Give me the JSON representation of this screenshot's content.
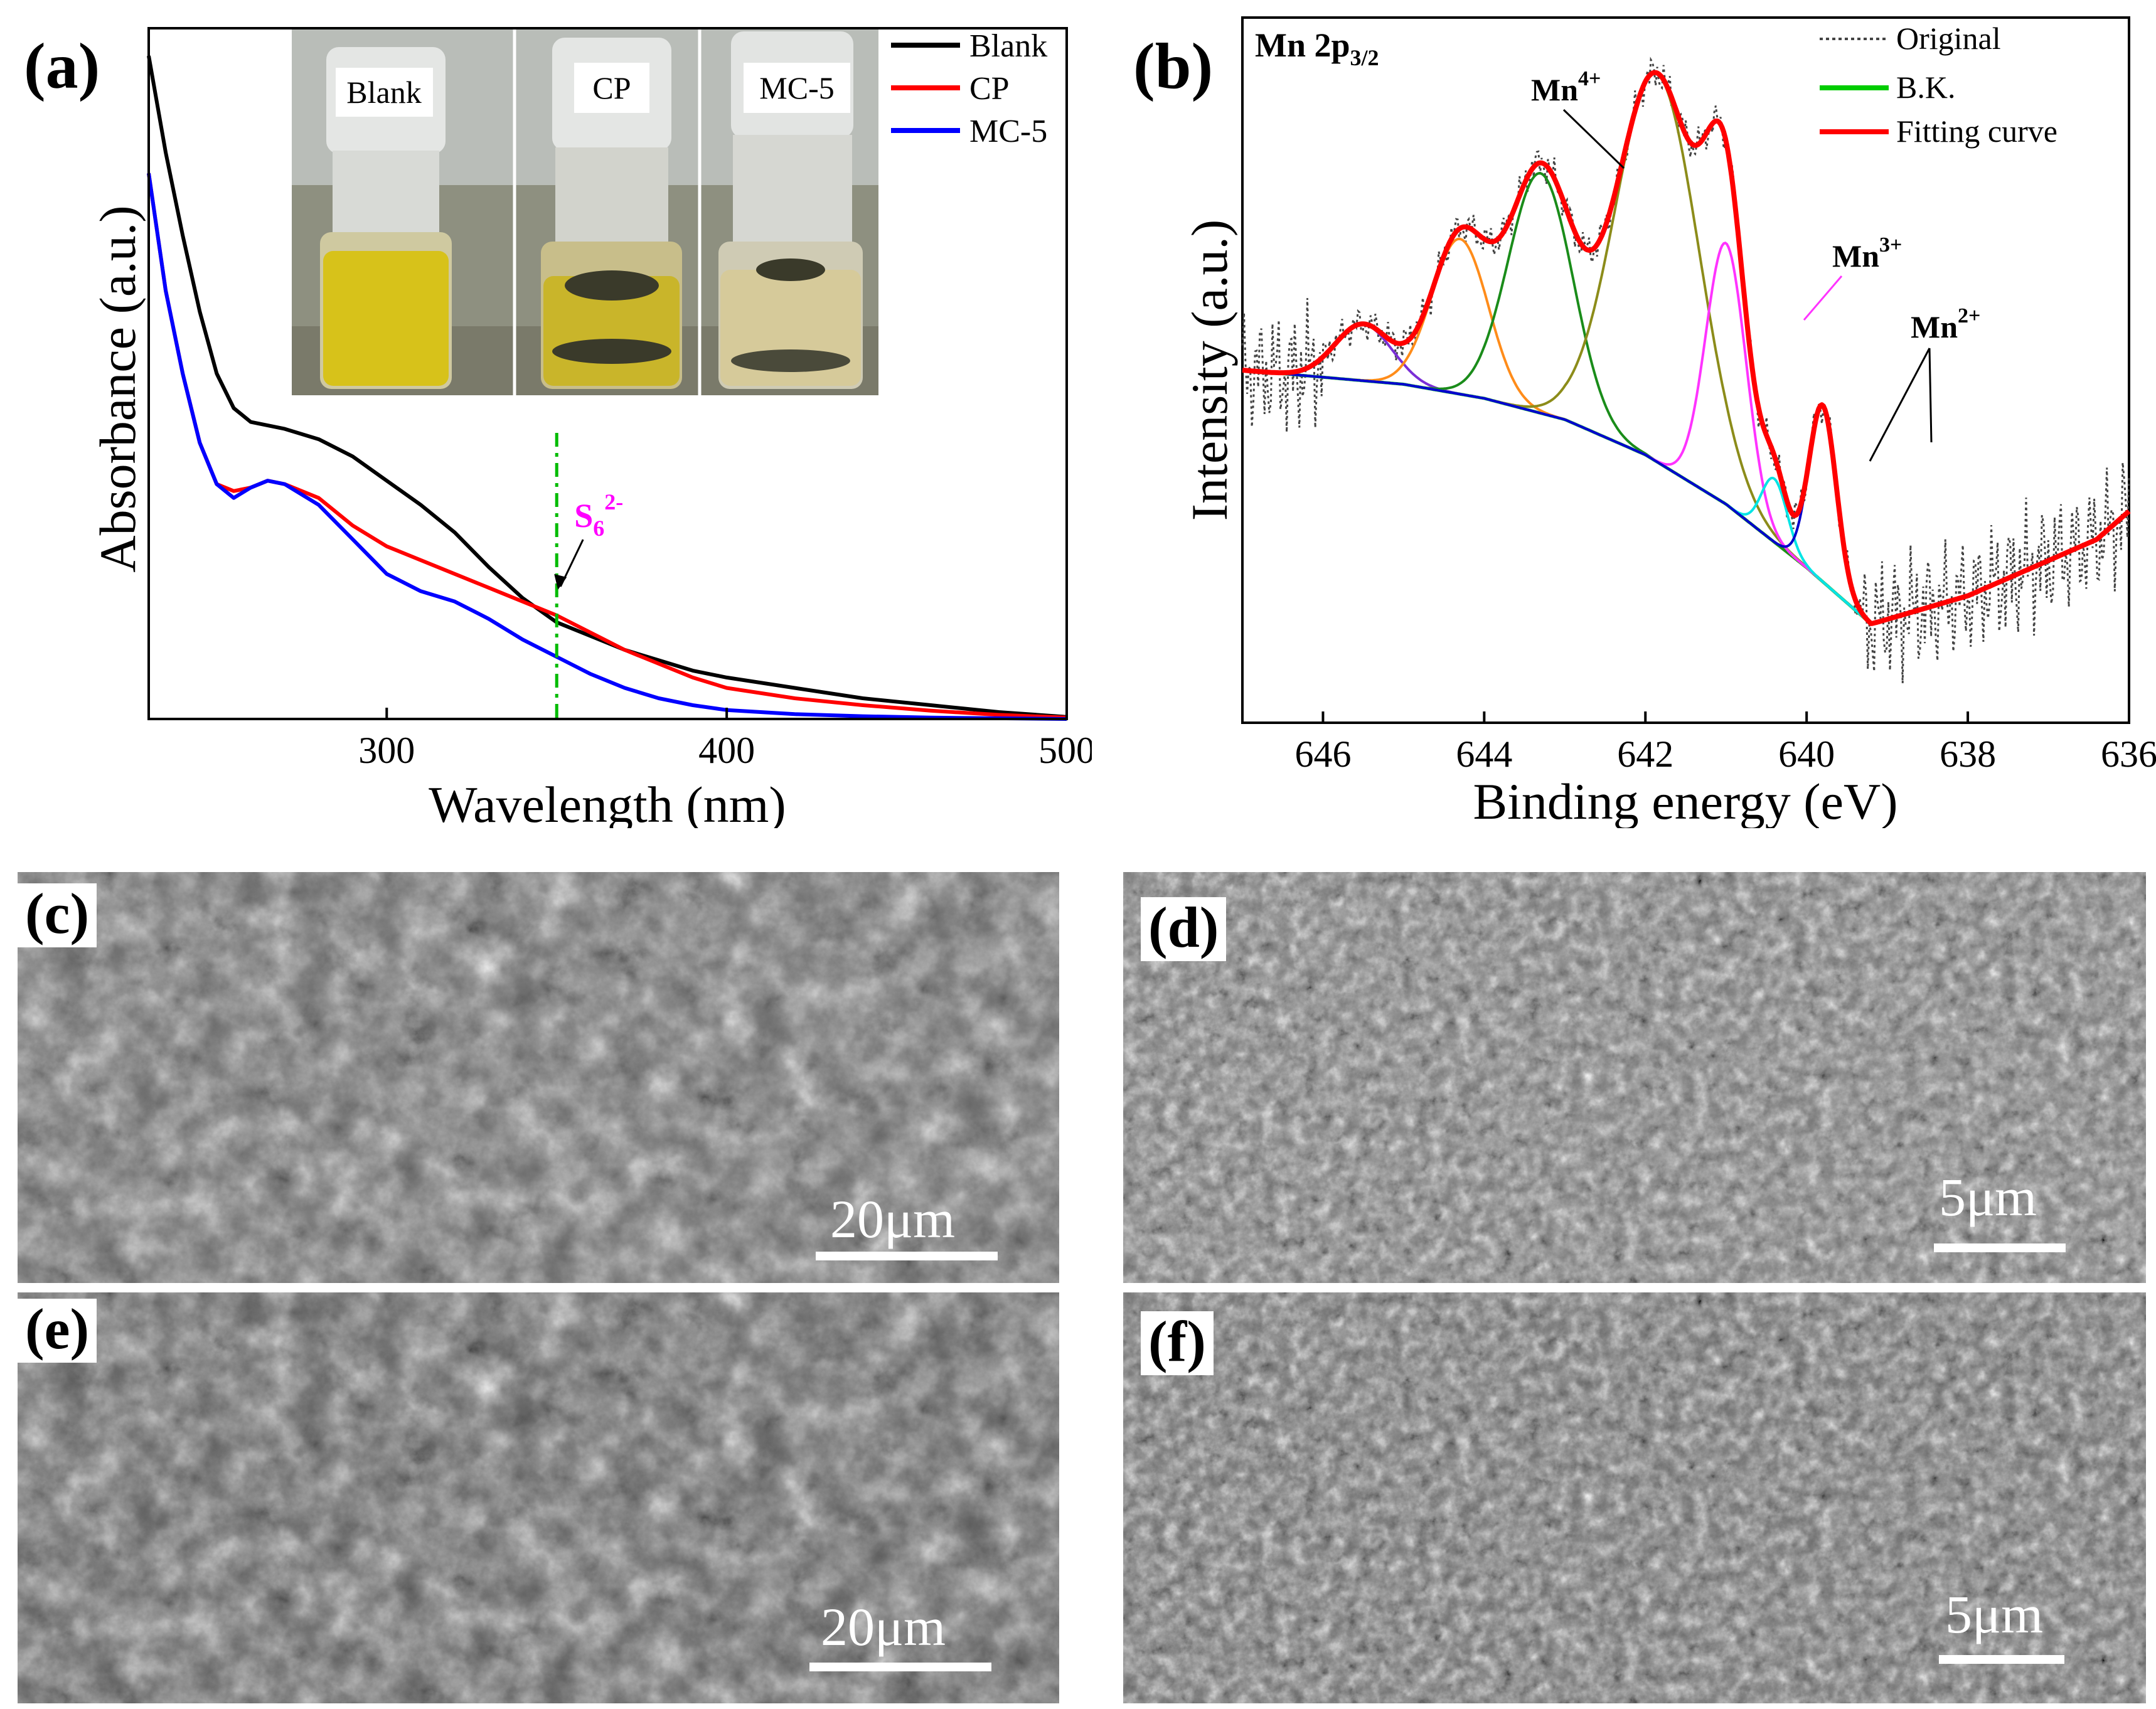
{
  "chart_data": [
    {
      "type": "line",
      "panel_label": "(a)",
      "xlabel": "Wavelength (nm)",
      "ylabel": "Absorbance (a.u.)",
      "xlim": [
        230,
        500
      ],
      "ylim": [
        0,
        1.0
      ],
      "xticks": [
        300,
        400,
        500
      ],
      "legend": [
        "Blank",
        "CP",
        "MC-5"
      ],
      "annotation": {
        "text": "S",
        "sub": "6",
        "sup": "2-",
        "x": 350
      },
      "inset_photo": {
        "labels": [
          "Blank",
          "CP",
          "MC-5"
        ]
      },
      "series": [
        {
          "name": "Blank",
          "color": "#000000",
          "x": [
            230,
            235,
            240,
            245,
            250,
            255,
            260,
            270,
            280,
            290,
            300,
            310,
            320,
            330,
            340,
            350,
            360,
            370,
            380,
            390,
            400,
            420,
            440,
            460,
            480,
            500
          ],
          "y": [
            0.96,
            0.82,
            0.7,
            0.59,
            0.5,
            0.45,
            0.43,
            0.42,
            0.405,
            0.38,
            0.345,
            0.31,
            0.27,
            0.22,
            0.175,
            0.14,
            0.12,
            0.1,
            0.085,
            0.07,
            0.06,
            0.045,
            0.03,
            0.02,
            0.01,
            0.003
          ]
        },
        {
          "name": "CP",
          "color": "#ff0000",
          "x": [
            230,
            235,
            240,
            245,
            250,
            255,
            260,
            265,
            270,
            280,
            290,
            300,
            310,
            320,
            330,
            340,
            350,
            360,
            370,
            380,
            390,
            400,
            420,
            440,
            460,
            480,
            500
          ],
          "y": [
            0.79,
            0.62,
            0.5,
            0.4,
            0.34,
            0.33,
            0.335,
            0.345,
            0.34,
            0.32,
            0.28,
            0.25,
            0.23,
            0.21,
            0.19,
            0.17,
            0.15,
            0.125,
            0.1,
            0.08,
            0.06,
            0.045,
            0.03,
            0.02,
            0.012,
            0.006,
            0.002
          ]
        },
        {
          "name": "MC-5",
          "color": "#0000ff",
          "x": [
            230,
            235,
            240,
            245,
            250,
            255,
            260,
            265,
            270,
            280,
            290,
            300,
            310,
            320,
            330,
            340,
            350,
            360,
            370,
            380,
            390,
            400,
            420,
            440,
            460,
            480,
            500
          ],
          "y": [
            0.79,
            0.62,
            0.5,
            0.4,
            0.34,
            0.32,
            0.335,
            0.345,
            0.34,
            0.31,
            0.26,
            0.21,
            0.185,
            0.17,
            0.145,
            0.115,
            0.09,
            0.065,
            0.045,
            0.03,
            0.02,
            0.013,
            0.007,
            0.004,
            0.002,
            0.001,
            0.0
          ]
        }
      ]
    },
    {
      "type": "line",
      "panel_label": "(b)",
      "title": "Mn 2p",
      "title_sub": "3/2",
      "xlabel": "Binding energy (eV)",
      "ylabel": "Intensity (a.u.)",
      "xlim": [
        647,
        636
      ],
      "ylim": [
        0,
        1.0
      ],
      "xticks": [
        646,
        644,
        642,
        640,
        638,
        636
      ],
      "legend": [
        "Original",
        "B.K.",
        "Fitting curve"
      ],
      "peak_labels": [
        {
          "text": "Mn",
          "sup": "4+",
          "x": 641.85
        },
        {
          "text": "Mn",
          "sup": "3+",
          "x": 641.0
        },
        {
          "text": "Mn",
          "sup": "2+",
          "x": 639.8
        }
      ],
      "background": {
        "x": [
          647,
          646,
          645,
          644,
          643,
          642,
          641,
          640,
          639.2,
          638,
          637,
          636.4,
          636
        ],
        "y": [
          0.5,
          0.49,
          0.48,
          0.46,
          0.43,
          0.38,
          0.31,
          0.22,
          0.14,
          0.18,
          0.23,
          0.26,
          0.3
        ]
      },
      "peaks": [
        {
          "name": "peak-645.5",
          "color": "#7b2fd6",
          "center": 645.5,
          "height": 0.08,
          "width": 0.35
        },
        {
          "name": "peak-644.3",
          "color": "#ff8c1a",
          "center": 644.3,
          "height": 0.22,
          "width": 0.35
        },
        {
          "name": "peak-643.3",
          "color": "#1a8c1a",
          "center": 643.3,
          "height": 0.34,
          "width": 0.4
        },
        {
          "name": "peak-641.85",
          "color": "#8c8c1a",
          "center": 641.85,
          "height": 0.55,
          "width": 0.52
        },
        {
          "name": "peak-641.0",
          "color": "#ff33ff",
          "center": 641.0,
          "height": 0.37,
          "width": 0.25
        },
        {
          "name": "peak-640.4",
          "color": "#00e5e5",
          "center": 640.4,
          "height": 0.09,
          "width": 0.16
        },
        {
          "name": "peak-639.8",
          "color": "#0000cc",
          "center": 639.8,
          "height": 0.25,
          "width": 0.17
        }
      ],
      "background_color": "#00cc00",
      "fit_color": "#ff0000",
      "original_color": "#444444"
    }
  ],
  "sem_panels": [
    {
      "label": "(c)",
      "scale": "20μm"
    },
    {
      "label": "(d)",
      "scale": "5μm"
    },
    {
      "label": "(e)",
      "scale": "20μm"
    },
    {
      "label": "(f)",
      "scale": "5μm"
    }
  ]
}
